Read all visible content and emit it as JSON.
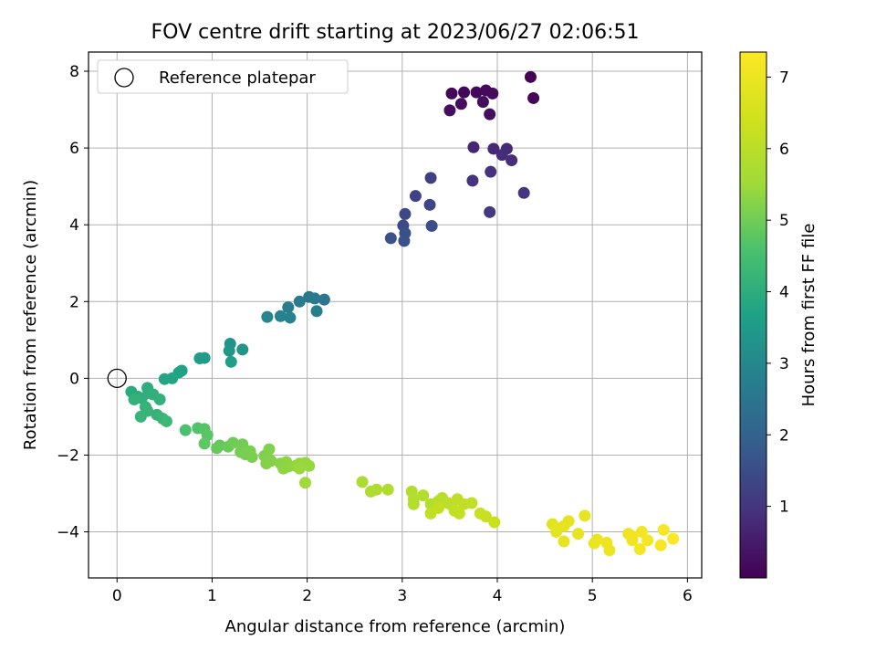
{
  "chart_data": {
    "type": "scatter",
    "title": "FOV centre drift starting at 2023/06/27 02:06:51",
    "xlabel": "Angular distance from reference (arcmin)",
    "ylabel": "Rotation from reference (arcmin)",
    "xlim": [
      -0.3,
      6.15
    ],
    "ylim": [
      -5.2,
      8.5
    ],
    "xticks": [
      0,
      1,
      2,
      3,
      4,
      5,
      6
    ],
    "yticks": [
      -4,
      -2,
      0,
      2,
      4,
      6,
      8
    ],
    "grid": true,
    "legend": {
      "placement": "top-left",
      "entries": [
        {
          "label": "Reference platepar",
          "marker": "open-circle"
        }
      ]
    },
    "reference_point": {
      "x": 0,
      "y": 0
    },
    "colorbar": {
      "label": "Hours from first FF file",
      "colormap": "viridis",
      "range": [
        0,
        7.35
      ],
      "ticks": [
        1,
        2,
        3,
        4,
        5,
        6,
        7
      ]
    },
    "points": [
      {
        "x": 4.35,
        "y": 7.85,
        "c": 0.05
      },
      {
        "x": 4.38,
        "y": 7.3,
        "c": 0.08
      },
      {
        "x": 3.52,
        "y": 7.42,
        "c": 0.1
      },
      {
        "x": 3.65,
        "y": 7.45,
        "c": 0.12
      },
      {
        "x": 3.78,
        "y": 7.45,
        "c": 0.14
      },
      {
        "x": 3.88,
        "y": 7.5,
        "c": 0.16
      },
      {
        "x": 3.95,
        "y": 7.42,
        "c": 0.18
      },
      {
        "x": 3.85,
        "y": 7.2,
        "c": 0.2
      },
      {
        "x": 3.62,
        "y": 7.15,
        "c": 0.22
      },
      {
        "x": 3.5,
        "y": 6.98,
        "c": 0.24
      },
      {
        "x": 3.92,
        "y": 6.88,
        "c": 0.26
      },
      {
        "x": 3.75,
        "y": 6.02,
        "c": 0.7
      },
      {
        "x": 3.96,
        "y": 5.98,
        "c": 0.75
      },
      {
        "x": 4.1,
        "y": 5.98,
        "c": 0.78
      },
      {
        "x": 4.05,
        "y": 5.82,
        "c": 0.8
      },
      {
        "x": 4.15,
        "y": 5.68,
        "c": 0.85
      },
      {
        "x": 3.93,
        "y": 5.38,
        "c": 0.9
      },
      {
        "x": 3.74,
        "y": 5.15,
        "c": 0.95
      },
      {
        "x": 4.28,
        "y": 4.83,
        "c": 1.0
      },
      {
        "x": 3.92,
        "y": 4.33,
        "c": 1.05
      },
      {
        "x": 3.3,
        "y": 5.22,
        "c": 1.2
      },
      {
        "x": 3.14,
        "y": 4.75,
        "c": 1.3
      },
      {
        "x": 3.29,
        "y": 4.52,
        "c": 1.35
      },
      {
        "x": 3.03,
        "y": 4.28,
        "c": 1.4
      },
      {
        "x": 3.01,
        "y": 3.98,
        "c": 1.45
      },
      {
        "x": 3.31,
        "y": 3.97,
        "c": 1.5
      },
      {
        "x": 3.03,
        "y": 3.78,
        "c": 1.55
      },
      {
        "x": 2.88,
        "y": 3.65,
        "c": 1.6
      },
      {
        "x": 3.02,
        "y": 3.58,
        "c": 1.65
      },
      {
        "x": 2.18,
        "y": 2.05,
        "c": 2.5
      },
      {
        "x": 2.02,
        "y": 2.12,
        "c": 2.55
      },
      {
        "x": 2.08,
        "y": 2.08,
        "c": 2.6
      },
      {
        "x": 1.92,
        "y": 2.0,
        "c": 2.65
      },
      {
        "x": 1.8,
        "y": 1.85,
        "c": 2.7
      },
      {
        "x": 2.1,
        "y": 1.75,
        "c": 2.75
      },
      {
        "x": 1.72,
        "y": 1.62,
        "c": 2.8
      },
      {
        "x": 1.82,
        "y": 1.58,
        "c": 2.85
      },
      {
        "x": 1.58,
        "y": 1.6,
        "c": 2.9
      },
      {
        "x": 1.19,
        "y": 0.9,
        "c": 3.3
      },
      {
        "x": 1.32,
        "y": 0.75,
        "c": 3.35
      },
      {
        "x": 1.18,
        "y": 0.72,
        "c": 3.4
      },
      {
        "x": 0.92,
        "y": 0.53,
        "c": 3.5
      },
      {
        "x": 0.87,
        "y": 0.52,
        "c": 3.55
      },
      {
        "x": 1.2,
        "y": 0.43,
        "c": 3.6
      },
      {
        "x": 0.68,
        "y": 0.2,
        "c": 3.65
      },
      {
        "x": 0.65,
        "y": 0.15,
        "c": 3.7
      },
      {
        "x": 0.58,
        "y": 0.0,
        "c": 3.75
      },
      {
        "x": 0.5,
        "y": -0.02,
        "c": 3.8
      },
      {
        "x": 0.15,
        "y": -0.35,
        "c": 3.9
      },
      {
        "x": 0.22,
        "y": -0.48,
        "c": 3.95
      },
      {
        "x": 0.32,
        "y": -0.25,
        "c": 4.0
      },
      {
        "x": 0.33,
        "y": -0.38,
        "c": 4.02
      },
      {
        "x": 0.26,
        "y": -0.52,
        "c": 4.05
      },
      {
        "x": 0.38,
        "y": -0.42,
        "c": 4.08
      },
      {
        "x": 0.45,
        "y": -0.55,
        "c": 4.1
      },
      {
        "x": 0.18,
        "y": -0.55,
        "c": 4.12
      },
      {
        "x": 0.3,
        "y": -0.75,
        "c": 4.15
      },
      {
        "x": 0.32,
        "y": -0.85,
        "c": 4.18
      },
      {
        "x": 0.42,
        "y": -0.95,
        "c": 4.2
      },
      {
        "x": 0.25,
        "y": -1.0,
        "c": 4.22
      },
      {
        "x": 0.48,
        "y": -1.05,
        "c": 4.25
      },
      {
        "x": 0.52,
        "y": -1.12,
        "c": 4.3
      },
      {
        "x": 0.72,
        "y": -1.35,
        "c": 4.6
      },
      {
        "x": 0.85,
        "y": -1.3,
        "c": 4.65
      },
      {
        "x": 0.92,
        "y": -1.32,
        "c": 4.7
      },
      {
        "x": 0.95,
        "y": -1.48,
        "c": 4.75
      },
      {
        "x": 0.92,
        "y": -1.7,
        "c": 4.8
      },
      {
        "x": 1.08,
        "y": -1.75,
        "c": 4.85
      },
      {
        "x": 1.05,
        "y": -1.82,
        "c": 4.9
      },
      {
        "x": 1.17,
        "y": -1.78,
        "c": 4.95
      },
      {
        "x": 1.22,
        "y": -1.68,
        "c": 5.0
      },
      {
        "x": 1.32,
        "y": -1.72,
        "c": 5.02
      },
      {
        "x": 1.3,
        "y": -1.92,
        "c": 5.05
      },
      {
        "x": 1.35,
        "y": -1.98,
        "c": 5.08
      },
      {
        "x": 1.4,
        "y": -1.9,
        "c": 5.1
      },
      {
        "x": 1.42,
        "y": -2.05,
        "c": 5.12
      },
      {
        "x": 1.55,
        "y": -2.02,
        "c": 5.15
      },
      {
        "x": 1.6,
        "y": -1.85,
        "c": 5.18
      },
      {
        "x": 1.57,
        "y": -2.22,
        "c": 5.2
      },
      {
        "x": 1.62,
        "y": -2.15,
        "c": 5.22
      },
      {
        "x": 1.72,
        "y": -2.22,
        "c": 5.25
      },
      {
        "x": 1.78,
        "y": -2.18,
        "c": 5.28
      },
      {
        "x": 1.75,
        "y": -2.35,
        "c": 5.3
      },
      {
        "x": 1.8,
        "y": -2.3,
        "c": 5.32
      },
      {
        "x": 1.88,
        "y": -2.28,
        "c": 5.35
      },
      {
        "x": 1.92,
        "y": -2.22,
        "c": 5.38
      },
      {
        "x": 1.98,
        "y": -2.2,
        "c": 5.4
      },
      {
        "x": 2.02,
        "y": -2.28,
        "c": 5.42
      },
      {
        "x": 1.92,
        "y": -2.35,
        "c": 5.45
      },
      {
        "x": 1.98,
        "y": -2.72,
        "c": 5.5
      },
      {
        "x": 2.58,
        "y": -2.7,
        "c": 5.75
      },
      {
        "x": 2.67,
        "y": -2.95,
        "c": 5.78
      },
      {
        "x": 2.73,
        "y": -2.9,
        "c": 5.8
      },
      {
        "x": 2.85,
        "y": -2.9,
        "c": 5.82
      },
      {
        "x": 3.1,
        "y": -2.95,
        "c": 5.85
      },
      {
        "x": 3.22,
        "y": -3.05,
        "c": 5.88
      },
      {
        "x": 3.12,
        "y": -3.15,
        "c": 5.9
      },
      {
        "x": 3.12,
        "y": -3.28,
        "c": 5.92
      },
      {
        "x": 3.3,
        "y": -3.28,
        "c": 5.95
      },
      {
        "x": 3.38,
        "y": -3.2,
        "c": 5.97
      },
      {
        "x": 3.42,
        "y": -3.12,
        "c": 6.0
      },
      {
        "x": 3.48,
        "y": -3.25,
        "c": 6.02
      },
      {
        "x": 3.52,
        "y": -3.3,
        "c": 6.05
      },
      {
        "x": 3.58,
        "y": -3.15,
        "c": 6.08
      },
      {
        "x": 3.65,
        "y": -3.28,
        "c": 6.1
      },
      {
        "x": 3.73,
        "y": -3.25,
        "c": 6.12
      },
      {
        "x": 3.3,
        "y": -3.52,
        "c": 6.15
      },
      {
        "x": 3.38,
        "y": -3.38,
        "c": 6.18
      },
      {
        "x": 3.55,
        "y": -3.45,
        "c": 6.2
      },
      {
        "x": 3.6,
        "y": -3.52,
        "c": 6.22
      },
      {
        "x": 3.82,
        "y": -3.52,
        "c": 6.25
      },
      {
        "x": 3.88,
        "y": -3.6,
        "c": 6.28
      },
      {
        "x": 3.97,
        "y": -3.75,
        "c": 6.3
      },
      {
        "x": 4.58,
        "y": -3.8,
        "c": 6.8
      },
      {
        "x": 4.62,
        "y": -3.9,
        "c": 6.82
      },
      {
        "x": 4.62,
        "y": -4.0,
        "c": 6.84
      },
      {
        "x": 4.7,
        "y": -3.85,
        "c": 6.86
      },
      {
        "x": 4.75,
        "y": -3.72,
        "c": 6.88
      },
      {
        "x": 4.92,
        "y": -3.58,
        "c": 6.9
      },
      {
        "x": 4.85,
        "y": -4.05,
        "c": 6.92
      },
      {
        "x": 4.7,
        "y": -4.25,
        "c": 6.94
      },
      {
        "x": 5.02,
        "y": -4.3,
        "c": 6.96
      },
      {
        "x": 5.05,
        "y": -4.2,
        "c": 6.98
      },
      {
        "x": 5.15,
        "y": -4.28,
        "c": 7.0
      },
      {
        "x": 5.18,
        "y": -4.48,
        "c": 7.02
      },
      {
        "x": 5.38,
        "y": -4.05,
        "c": 7.05
      },
      {
        "x": 5.42,
        "y": -4.12,
        "c": 7.08
      },
      {
        "x": 5.42,
        "y": -4.22,
        "c": 7.1
      },
      {
        "x": 5.52,
        "y": -4.0,
        "c": 7.12
      },
      {
        "x": 5.5,
        "y": -4.45,
        "c": 7.15
      },
      {
        "x": 5.58,
        "y": -4.22,
        "c": 7.18
      },
      {
        "x": 5.72,
        "y": -4.35,
        "c": 7.22
      },
      {
        "x": 5.75,
        "y": -3.95,
        "c": 7.25
      },
      {
        "x": 5.85,
        "y": -4.18,
        "c": 7.3
      }
    ]
  }
}
